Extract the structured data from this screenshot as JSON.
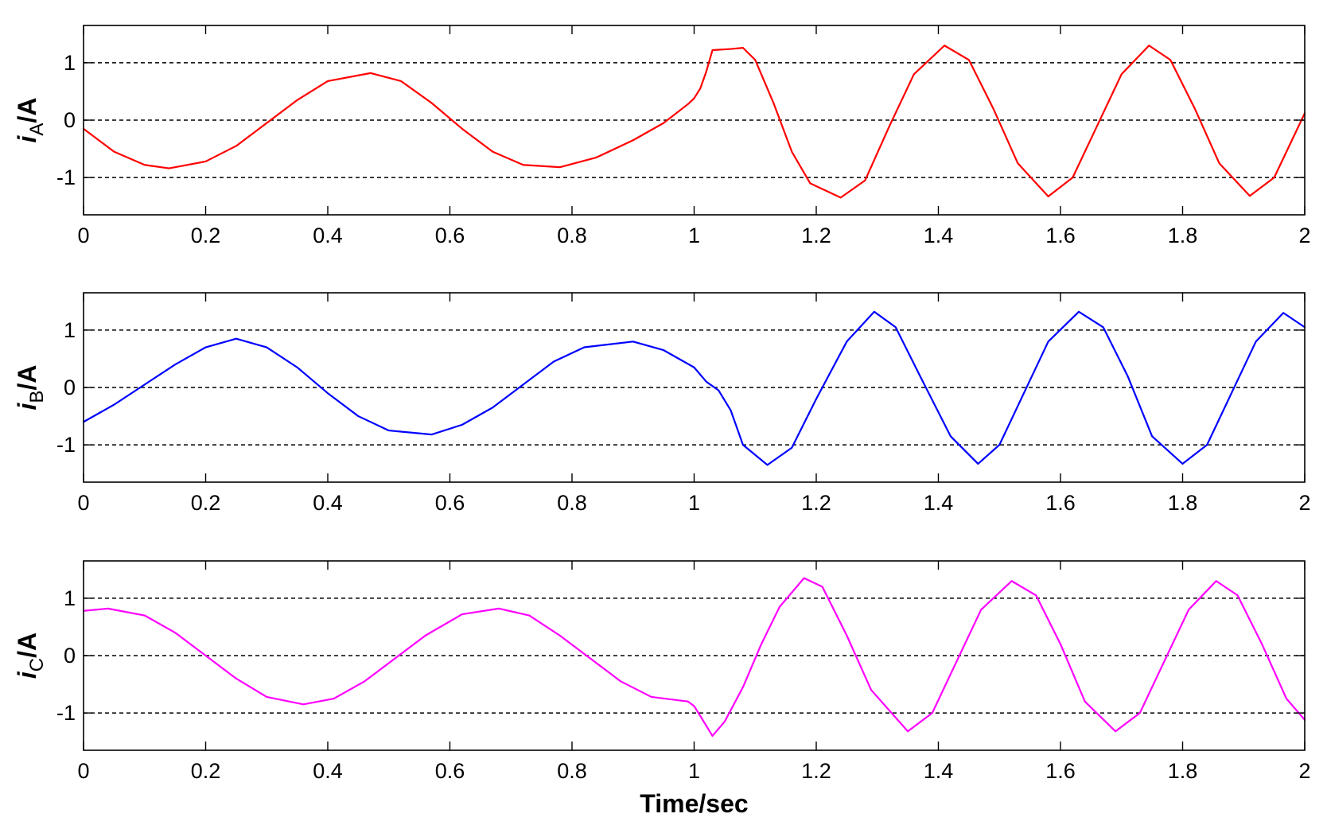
{
  "chart_data": [
    {
      "type": "line",
      "ylabel": {
        "symbol": "i",
        "subscript": "A",
        "unit": "/A"
      },
      "xlabel": "",
      "xlim": [
        0,
        2
      ],
      "ylim": [
        -1.65,
        1.65
      ],
      "xticks": [
        0,
        0.2,
        0.4,
        0.6,
        0.8,
        1,
        1.2,
        1.4,
        1.6,
        1.8,
        2
      ],
      "xtick_labels": [
        "0",
        "0.2",
        "0.4",
        "0.6",
        "0.8",
        "1",
        "1.2",
        "1.4",
        "1.6",
        "1.8",
        "2"
      ],
      "yticks": [
        -1,
        0,
        1
      ],
      "ytick_labels": [
        "-1",
        "0",
        "1"
      ],
      "grid": "dashed horizontal at y ticks",
      "series": [
        {
          "color": "#ff0000",
          "x": [
            0,
            0.05,
            0.1,
            0.14,
            0.2,
            0.25,
            0.3,
            0.35,
            0.4,
            0.47,
            0.52,
            0.57,
            0.62,
            0.67,
            0.72,
            0.78,
            0.84,
            0.9,
            0.95,
            0.99,
            1.0,
            1.01,
            1.02,
            1.03,
            1.06,
            1.08,
            1.1,
            1.13,
            1.16,
            1.19,
            1.24,
            1.28,
            1.32,
            1.36,
            1.41,
            1.45,
            1.49,
            1.53,
            1.58,
            1.62,
            1.66,
            1.7,
            1.745,
            1.78,
            1.82,
            1.86,
            1.91,
            1.95,
            2.0
          ],
          "y": [
            -0.15,
            -0.55,
            -0.78,
            -0.84,
            -0.72,
            -0.45,
            -0.05,
            0.35,
            0.68,
            0.82,
            0.68,
            0.3,
            -0.15,
            -0.55,
            -0.78,
            -0.82,
            -0.65,
            -0.35,
            -0.05,
            0.28,
            0.38,
            0.55,
            0.85,
            1.22,
            1.24,
            1.26,
            1.05,
            0.3,
            -0.55,
            -1.1,
            -1.35,
            -1.05,
            -0.1,
            0.8,
            1.3,
            1.05,
            0.2,
            -0.75,
            -1.33,
            -1.0,
            -0.1,
            0.8,
            1.3,
            1.05,
            0.2,
            -0.75,
            -1.32,
            -1.0,
            0.12
          ]
        }
      ]
    },
    {
      "type": "line",
      "ylabel": {
        "symbol": "i",
        "subscript": "B",
        "unit": "/A"
      },
      "xlabel": "",
      "xlim": [
        0,
        2
      ],
      "ylim": [
        -1.65,
        1.65
      ],
      "xticks": [
        0,
        0.2,
        0.4,
        0.6,
        0.8,
        1,
        1.2,
        1.4,
        1.6,
        1.8,
        2
      ],
      "xtick_labels": [
        "0",
        "0.2",
        "0.4",
        "0.6",
        "0.8",
        "1",
        "1.2",
        "1.4",
        "1.6",
        "1.8",
        "2"
      ],
      "yticks": [
        -1,
        0,
        1
      ],
      "ytick_labels": [
        "-1",
        "0",
        "1"
      ],
      "grid": "dashed horizontal at y ticks",
      "series": [
        {
          "color": "#0000ff",
          "x": [
            0,
            0.05,
            0.1,
            0.15,
            0.2,
            0.25,
            0.3,
            0.35,
            0.4,
            0.45,
            0.5,
            0.57,
            0.62,
            0.67,
            0.72,
            0.77,
            0.82,
            0.9,
            0.95,
            1.0,
            1.02,
            1.04,
            1.06,
            1.08,
            1.12,
            1.16,
            1.2,
            1.25,
            1.295,
            1.33,
            1.37,
            1.42,
            1.465,
            1.5,
            1.54,
            1.58,
            1.63,
            1.67,
            1.71,
            1.75,
            1.8,
            1.84,
            1.88,
            1.92,
            1.965,
            2.0
          ],
          "y": [
            -0.6,
            -0.3,
            0.05,
            0.4,
            0.7,
            0.85,
            0.7,
            0.35,
            -0.1,
            -0.5,
            -0.75,
            -0.82,
            -0.65,
            -0.35,
            0.05,
            0.45,
            0.7,
            0.8,
            0.65,
            0.35,
            0.1,
            -0.05,
            -0.4,
            -1.0,
            -1.35,
            -1.05,
            -0.2,
            0.8,
            1.32,
            1.05,
            0.2,
            -0.85,
            -1.33,
            -1.0,
            -0.1,
            0.8,
            1.32,
            1.05,
            0.2,
            -0.85,
            -1.33,
            -1.0,
            -0.1,
            0.8,
            1.3,
            1.05
          ]
        }
      ]
    },
    {
      "type": "line",
      "ylabel": {
        "symbol": "i",
        "subscript": "C",
        "unit": "/A"
      },
      "xlabel": "Time/sec",
      "xlim": [
        0,
        2
      ],
      "ylim": [
        -1.65,
        1.65
      ],
      "xticks": [
        0,
        0.2,
        0.4,
        0.6,
        0.8,
        1,
        1.2,
        1.4,
        1.6,
        1.8,
        2
      ],
      "xtick_labels": [
        "0",
        "0.2",
        "0.4",
        "0.6",
        "0.8",
        "1",
        "1.2",
        "1.4",
        "1.6",
        "1.8",
        "2"
      ],
      "yticks": [
        -1,
        0,
        1
      ],
      "ytick_labels": [
        "-1",
        "0",
        "1"
      ],
      "grid": "dashed horizontal at y ticks",
      "series": [
        {
          "color": "#ff00ff",
          "x": [
            0,
            0.04,
            0.1,
            0.15,
            0.2,
            0.25,
            0.3,
            0.36,
            0.41,
            0.46,
            0.51,
            0.56,
            0.62,
            0.68,
            0.73,
            0.78,
            0.83,
            0.88,
            0.93,
            0.99,
            1.0,
            1.01,
            1.03,
            1.05,
            1.08,
            1.11,
            1.14,
            1.18,
            1.21,
            1.25,
            1.29,
            1.35,
            1.39,
            1.43,
            1.47,
            1.52,
            1.56,
            1.6,
            1.64,
            1.69,
            1.73,
            1.77,
            1.81,
            1.855,
            1.89,
            1.93,
            1.97,
            2.0
          ],
          "y": [
            0.78,
            0.82,
            0.7,
            0.4,
            0.0,
            -0.4,
            -0.72,
            -0.85,
            -0.75,
            -0.45,
            -0.05,
            0.35,
            0.72,
            0.82,
            0.7,
            0.35,
            -0.05,
            -0.45,
            -0.72,
            -0.8,
            -0.88,
            -1.05,
            -1.4,
            -1.15,
            -0.55,
            0.2,
            0.85,
            1.35,
            1.2,
            0.35,
            -0.6,
            -1.32,
            -1.0,
            -0.1,
            0.8,
            1.3,
            1.05,
            0.2,
            -0.8,
            -1.32,
            -1.0,
            -0.1,
            0.8,
            1.3,
            1.05,
            0.2,
            -0.75,
            -1.12
          ]
        }
      ]
    }
  ]
}
